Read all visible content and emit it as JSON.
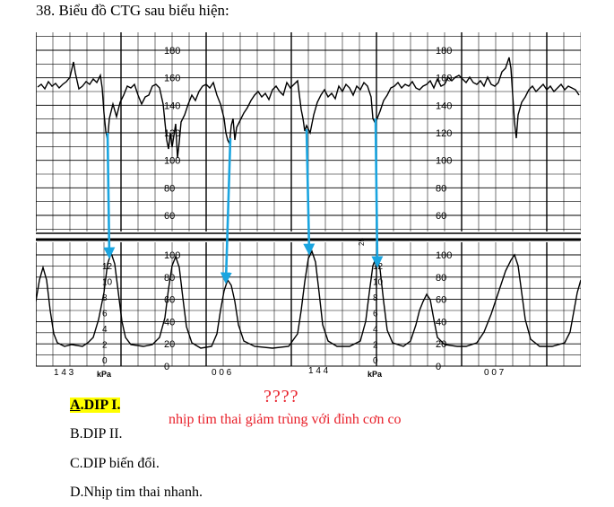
{
  "question": {
    "title": "38. Biểu đồ CTG sau biểu hiện:"
  },
  "fhr_scale": {
    "labels": [
      "180",
      "160",
      "140",
      "120",
      "100",
      "80",
      "60"
    ],
    "values": [
      180,
      160,
      140,
      120,
      100,
      80,
      60
    ]
  },
  "uc_scale": {
    "labels": [
      "100",
      "80",
      "60",
      "40",
      "20",
      "0"
    ],
    "values": [
      100,
      80,
      60,
      40,
      20,
      0
    ]
  },
  "kpa_scale": {
    "labels": [
      "12",
      "10",
      "8",
      "6",
      "4",
      "2",
      "0"
    ],
    "unit": "kPa"
  },
  "paper_marks": {
    "left": "1 4 3",
    "mid": "0 0 6",
    "center": "1 4 4",
    "right": "0 0 7",
    "speed": "25"
  },
  "colors": {
    "trace": "#000000",
    "arrow": "#1aa5e0",
    "note": "#e8202a",
    "highlight": "#ffff00",
    "grid": "#000000"
  },
  "annotation": {
    "qmarks": "????",
    "note": "nhịp tim thai giảm trùng với đỉnh cơn co"
  },
  "options": {
    "a_letter": "A",
    "a_text": ".DIP I.",
    "b": "B.DIP II.",
    "c": "C.DIP biến đổi.",
    "d": "D.Nhịp tim thai nhanh."
  }
}
